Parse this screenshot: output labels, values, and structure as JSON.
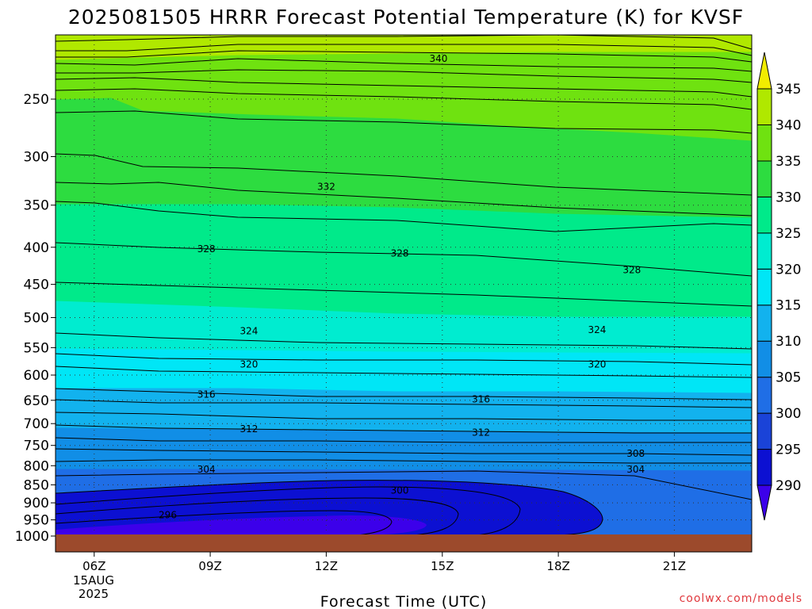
{
  "title": "2025081505 HRRR Forecast Potential Temperature (K) for KVSF",
  "credit": "coolwx.com/models",
  "chart_data": {
    "type": "heatmap",
    "title": "2025081505 HRRR Forecast Potential Temperature (K) for KVSF",
    "xlabel": "Forecast Time (UTC)",
    "ylabel": "",
    "x_ticks": [
      "06Z",
      "09Z",
      "12Z",
      "15Z",
      "18Z",
      "21Z"
    ],
    "x_tick_hours": [
      6,
      9,
      12,
      15,
      18,
      21
    ],
    "x_start_date_label": [
      "15AUG",
      "2025"
    ],
    "xlim_hours": [
      5,
      23
    ],
    "y_ticks_hPa": [
      250,
      300,
      350,
      400,
      450,
      500,
      550,
      600,
      650,
      700,
      750,
      800,
      850,
      900,
      950,
      1000
    ],
    "ylim_hPa": [
      1000,
      200
    ],
    "y_scale": "log-pressure",
    "grid": "dotted",
    "colorbar": {
      "levels": [
        290,
        295,
        300,
        305,
        310,
        315,
        320,
        325,
        330,
        335,
        340,
        345
      ],
      "tick_labels": [
        "290",
        "295",
        "300",
        "305",
        "310",
        "315",
        "320",
        "325",
        "330",
        "335",
        "340",
        "345"
      ],
      "colors": [
        "#3c00ea",
        "#0c10d2",
        "#1a43d8",
        "#1f6ee6",
        "#118ee6",
        "#12b2ee",
        "#00e6f6",
        "#00ecd0",
        "#00ea8a",
        "#2ddc40",
        "#6fe210",
        "#b0e800",
        "#f2ec00"
      ]
    },
    "ground_color": "#9c4a2c",
    "contour_labels": [
      {
        "value": "340",
        "hour": 14.9,
        "p": 220
      },
      {
        "value": "332",
        "hour": 12.0,
        "p": 330
      },
      {
        "value": "328",
        "hour": 8.9,
        "p": 402
      },
      {
        "value": "328",
        "hour": 13.9,
        "p": 408
      },
      {
        "value": "328",
        "hour": 19.9,
        "p": 430
      },
      {
        "value": "324",
        "hour": 10.0,
        "p": 522
      },
      {
        "value": "324",
        "hour": 19.0,
        "p": 520
      },
      {
        "value": "320",
        "hour": 10.0,
        "p": 580
      },
      {
        "value": "320",
        "hour": 19.0,
        "p": 580
      },
      {
        "value": "316",
        "hour": 8.9,
        "p": 638
      },
      {
        "value": "316",
        "hour": 16.0,
        "p": 648
      },
      {
        "value": "312",
        "hour": 10.0,
        "p": 712
      },
      {
        "value": "312",
        "hour": 16.0,
        "p": 720
      },
      {
        "value": "308",
        "hour": 20.0,
        "p": 770
      },
      {
        "value": "304",
        "hour": 8.9,
        "p": 810
      },
      {
        "value": "304",
        "hour": 20.0,
        "p": 810
      },
      {
        "value": "300",
        "hour": 13.9,
        "p": 865
      },
      {
        "value": "296",
        "hour": 7.9,
        "p": 935
      }
    ]
  }
}
